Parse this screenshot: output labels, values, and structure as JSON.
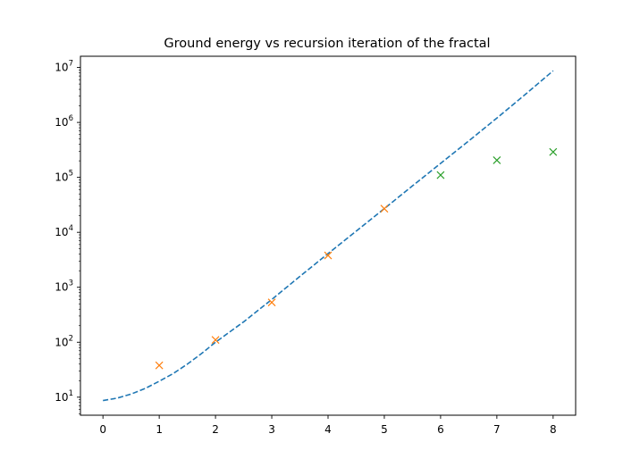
{
  "chart_data": {
    "type": "line",
    "title": "Ground energy vs recursion iteration of the fractal",
    "xlabel": "",
    "ylabel": "",
    "xlim": [
      -0.4,
      8.4
    ],
    "ylim": [
      4.7,
      16000000
    ],
    "y_scale": "log",
    "grid": false,
    "x_ticks": [
      {
        "value": 0,
        "label": "0"
      },
      {
        "value": 1,
        "label": "1"
      },
      {
        "value": 2,
        "label": "2"
      },
      {
        "value": 3,
        "label": "3"
      },
      {
        "value": 4,
        "label": "4"
      },
      {
        "value": 5,
        "label": "5"
      },
      {
        "value": 6,
        "label": "6"
      },
      {
        "value": 7,
        "label": "7"
      },
      {
        "value": 8,
        "label": "8"
      }
    ],
    "y_ticks": [
      {
        "value": 10,
        "base": "10",
        "exp": "1"
      },
      {
        "value": 100,
        "base": "10",
        "exp": "2"
      },
      {
        "value": 1000,
        "base": "10",
        "exp": "3"
      },
      {
        "value": 10000,
        "base": "10",
        "exp": "4"
      },
      {
        "value": 100000,
        "base": "10",
        "exp": "5"
      },
      {
        "value": 1000000,
        "base": "10",
        "exp": "6"
      },
      {
        "value": 10000000,
        "base": "10",
        "exp": "7"
      }
    ],
    "series": [
      {
        "style": "dashed-line",
        "color": "#1f77b4",
        "x": [
          0,
          0.25,
          0.5,
          0.75,
          1,
          1.25,
          1.5,
          1.75,
          2,
          2.5,
          3,
          3.5,
          4,
          4.5,
          5,
          5.5,
          6,
          6.5,
          7,
          7.5,
          8
        ],
        "y": [
          8.7,
          9.6,
          11.4,
          14.4,
          19.5,
          27,
          40,
          62,
          100,
          235,
          600,
          1580,
          4100,
          10500,
          27000,
          70000,
          180000,
          460000,
          1200000,
          3200000,
          8700000
        ]
      },
      {
        "style": "x-markers",
        "color": "#ff7f0e",
        "x": [
          1,
          2,
          3,
          4,
          5
        ],
        "y": [
          38,
          110,
          530,
          3800,
          27000
        ]
      },
      {
        "style": "x-markers",
        "color": "#2ca02c",
        "x": [
          6,
          7,
          8
        ],
        "y": [
          110000,
          205000,
          290000
        ]
      }
    ]
  }
}
